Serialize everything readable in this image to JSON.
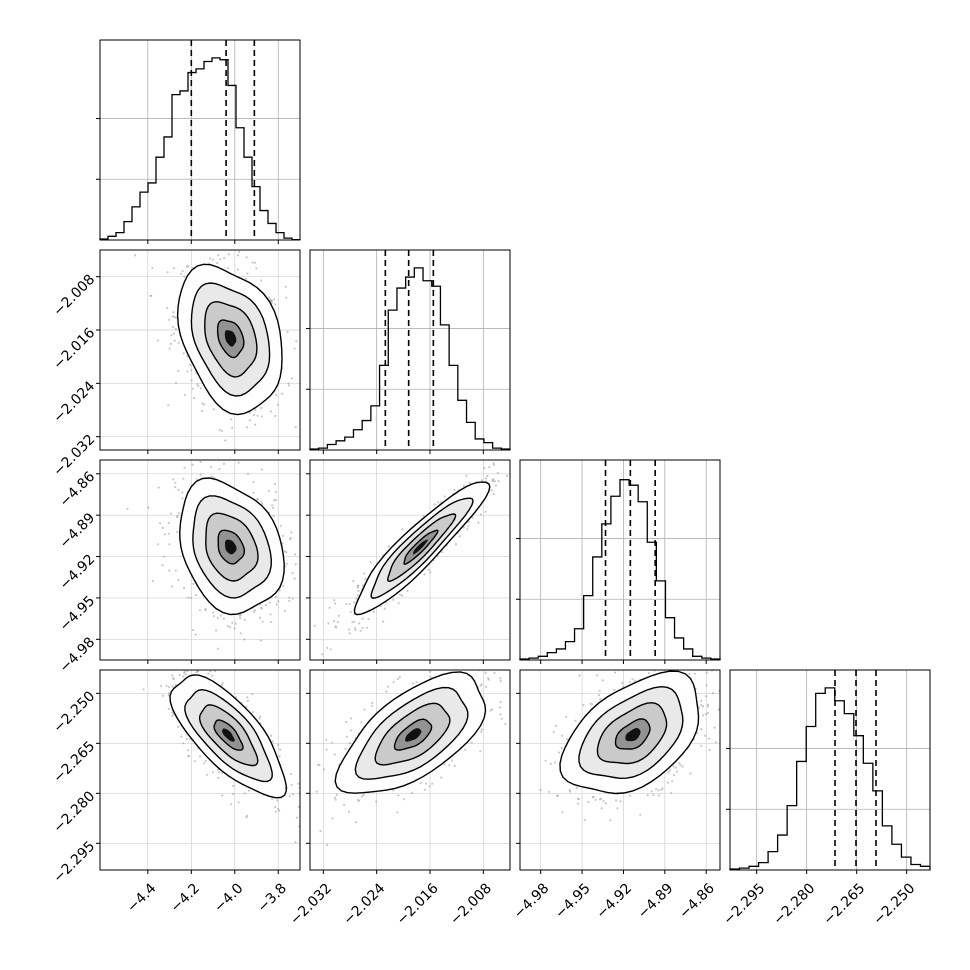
{
  "chart_data": {
    "type": "corner",
    "grid": true,
    "parameters": [
      {
        "index": 0,
        "range": [
          -4.62,
          -3.7
        ],
        "ticks": [
          -4.4,
          -4.2,
          -4.0,
          -3.8
        ],
        "tick_labels": [
          "−4.4",
          "−4.2",
          "−4.0",
          "−3.8"
        ],
        "quantiles": [
          -4.2,
          -4.04,
          -3.91
        ],
        "hist_max": 1.0,
        "hist_ticks": [
          0.33,
          0.66
        ],
        "hist_bins": [
          0.005,
          0.02,
          0.04,
          0.1,
          0.18,
          0.26,
          0.31,
          0.45,
          0.56,
          0.79,
          0.81,
          0.91,
          0.93,
          0.97,
          0.99,
          0.98,
          0.84,
          0.61,
          0.45,
          0.29,
          0.16,
          0.09,
          0.04,
          0.01,
          0.002
        ]
      },
      {
        "index": 1,
        "range": [
          -2.034,
          -2.004
        ],
        "ticks": [
          -2.032,
          -2.024,
          -2.016,
          -2.008
        ],
        "tick_labels": [
          "−2.032",
          "−2.024",
          "−2.016",
          "−2.008"
        ],
        "quantiles": [
          -2.0227,
          -2.0192,
          -2.0155
        ],
        "hist_max": 1.0,
        "hist_ticks": [
          0.33,
          0.66
        ],
        "hist_bins": [
          0.005,
          0.01,
          0.03,
          0.05,
          0.07,
          0.11,
          0.16,
          0.24,
          0.46,
          0.76,
          0.88,
          0.94,
          0.99,
          0.92,
          0.89,
          0.68,
          0.46,
          0.27,
          0.15,
          0.06,
          0.04,
          0.01,
          0.005
        ]
      },
      {
        "index": 2,
        "range": [
          -4.995,
          -4.85
        ],
        "ticks": [
          -4.98,
          -4.95,
          -4.92,
          -4.89,
          -4.86
        ],
        "tick_labels": [
          "−4.98",
          "−4.95",
          "−4.92",
          "−4.89",
          "−4.86"
        ],
        "quantiles": [
          -4.933,
          -4.915,
          -4.897
        ],
        "hist_max": 1.0,
        "hist_ticks": [
          0.33,
          0.66
        ],
        "hist_bins": [
          0.005,
          0.01,
          0.02,
          0.04,
          0.06,
          0.1,
          0.17,
          0.35,
          0.56,
          0.74,
          0.89,
          0.98,
          0.95,
          0.86,
          0.64,
          0.43,
          0.23,
          0.12,
          0.06,
          0.02,
          0.01,
          0.005
        ]
      },
      {
        "index": 3,
        "range": [
          -2.303,
          -2.243
        ],
        "ticks": [
          -2.295,
          -2.28,
          -2.265,
          -2.25
        ],
        "tick_labels": [
          "−2.295",
          "−2.280",
          "−2.265",
          "−2.250"
        ],
        "quantiles": [
          -2.2715,
          -2.2652,
          -2.2592
        ],
        "hist_max": 1.0,
        "hist_ticks": [
          0.33,
          0.66
        ],
        "hist_bins": [
          0.005,
          0.01,
          0.02,
          0.04,
          0.1,
          0.19,
          0.35,
          0.59,
          0.78,
          0.96,
          0.99,
          0.92,
          0.85,
          0.73,
          0.58,
          0.43,
          0.24,
          0.14,
          0.07,
          0.03,
          0.02
        ]
      }
    ],
    "pairs": [
      {
        "x": 0,
        "y": 1,
        "mean": [
          -4.02,
          -2.0172
        ],
        "sd": [
          0.12,
          0.0055
        ],
        "corr": -0.3
      },
      {
        "x": 0,
        "y": 2,
        "mean": [
          -4.02,
          -4.913
        ],
        "sd": [
          0.12,
          0.024
        ],
        "corr": -0.25
      },
      {
        "x": 1,
        "y": 2,
        "mean": [
          -2.0175,
          -4.913
        ],
        "sd": [
          0.005,
          0.024
        ],
        "corr": 0.92
      },
      {
        "x": 0,
        "y": 3,
        "mean": [
          -4.03,
          -2.2625
        ],
        "sd": [
          0.13,
          0.009
        ],
        "corr": -0.72
      },
      {
        "x": 1,
        "y": 3,
        "mean": [
          -2.0185,
          -2.2625
        ],
        "sd": [
          0.0055,
          0.009
        ],
        "corr": 0.62
      },
      {
        "x": 2,
        "y": 3,
        "mean": [
          -4.913,
          -2.2625
        ],
        "sd": [
          0.025,
          0.009
        ],
        "corr": 0.45
      }
    ],
    "contour_levels_sigma": [
      0.5,
      1.0,
      1.5,
      2.0
    ]
  }
}
